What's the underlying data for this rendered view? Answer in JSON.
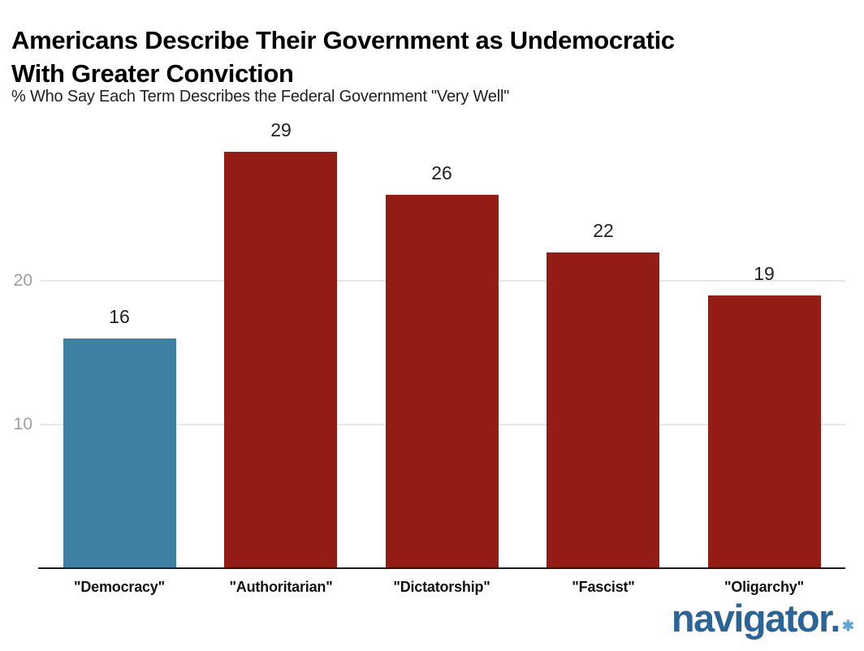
{
  "header": {
    "title_lines": [
      "Americans Describe Their Government as Undemocratic",
      "With Greater Conviction"
    ],
    "subtitle": "% Who Say Each Term Describes the Federal Government \"Very Well\""
  },
  "chart_data": {
    "type": "bar",
    "title": "Americans Describe Their Government as Undemocratic With Greater Conviction",
    "subtitle": "% Who Say Each Term Describes the Federal Government \"Very Well\"",
    "categories": [
      "\"Democracy\"",
      "\"Authoritarian\"",
      "\"Dictatorship\"",
      "\"Fascist\"",
      "\"Oligarchy\""
    ],
    "values": [
      16,
      29,
      26,
      22,
      19
    ],
    "bar_colors": [
      "#3e81a3",
      "#931d14",
      "#931d14",
      "#931d14",
      "#931d14"
    ],
    "xlabel": "",
    "ylabel": "",
    "yticks": [
      10,
      20
    ],
    "ylim": [
      0,
      31.6
    ],
    "grid": true,
    "legend": false,
    "value_labels_shown": true,
    "grid_color": "#e7e7e7",
    "axis_color": "#1c1c1c",
    "tick_label_color": "#9e9e9e"
  },
  "branding": {
    "logo_text": "navigator.",
    "logo_asterisk": "✱",
    "logo_color": "#2b6496",
    "asterisk_color": "#5ba3d9"
  }
}
